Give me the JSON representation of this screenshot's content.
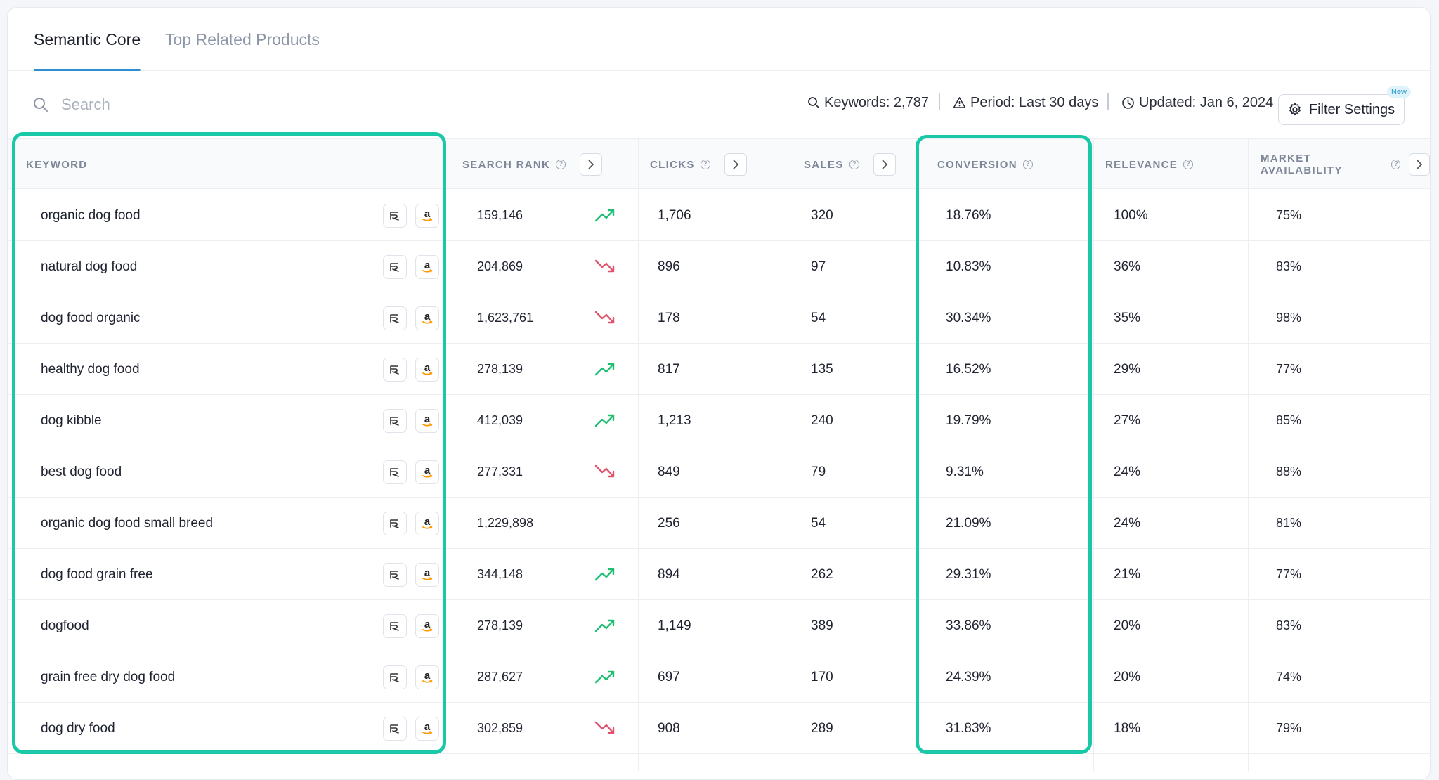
{
  "tabs": [
    {
      "label": "Semantic Core",
      "active": true
    },
    {
      "label": "Top Related Products",
      "active": false
    }
  ],
  "search": {
    "placeholder": "Search",
    "icon": "search-icon"
  },
  "meta": {
    "keywords": "Keywords: 2,787",
    "period": "Period: Last 30 days",
    "updated": "Updated: Jan 6, 2024"
  },
  "filter_button": {
    "label": "Filter Settings",
    "badge": "New"
  },
  "columns": {
    "keyword": "KEYWORD",
    "search_rank": "SEARCH RANK",
    "clicks": "CLICKS",
    "sales": "SALES",
    "conversion": "CONVERSION",
    "relevance": "RELEVANCE",
    "market_availability": "MARKET AVAILABILITY"
  },
  "colors": {
    "accent": "#2f8ecf",
    "highlight": "#19c8a6",
    "trend_up": "#1dbf73",
    "trend_down": "#e0536b"
  },
  "rows": [
    {
      "keyword": "organic dog food",
      "search_rank": "159,146",
      "trend": "up",
      "clicks": "1,706",
      "sales": "320",
      "conversion": "18.76%",
      "relevance": "100%",
      "market": "75%"
    },
    {
      "keyword": "natural dog food",
      "search_rank": "204,869",
      "trend": "down",
      "clicks": "896",
      "sales": "97",
      "conversion": "10.83%",
      "relevance": "36%",
      "market": "83%"
    },
    {
      "keyword": "dog food organic",
      "search_rank": "1,623,761",
      "trend": "down",
      "clicks": "178",
      "sales": "54",
      "conversion": "30.34%",
      "relevance": "35%",
      "market": "98%"
    },
    {
      "keyword": "healthy dog food",
      "search_rank": "278,139",
      "trend": "up",
      "clicks": "817",
      "sales": "135",
      "conversion": "16.52%",
      "relevance": "29%",
      "market": "77%"
    },
    {
      "keyword": "dog kibble",
      "search_rank": "412,039",
      "trend": "up",
      "clicks": "1,213",
      "sales": "240",
      "conversion": "19.79%",
      "relevance": "27%",
      "market": "85%"
    },
    {
      "keyword": "best dog food",
      "search_rank": "277,331",
      "trend": "down",
      "clicks": "849",
      "sales": "79",
      "conversion": "9.31%",
      "relevance": "24%",
      "market": "88%"
    },
    {
      "keyword": "organic dog food small breed",
      "search_rank": "1,229,898",
      "trend": "none",
      "clicks": "256",
      "sales": "54",
      "conversion": "21.09%",
      "relevance": "24%",
      "market": "81%"
    },
    {
      "keyword": "dog food grain free",
      "search_rank": "344,148",
      "trend": "up",
      "clicks": "894",
      "sales": "262",
      "conversion": "29.31%",
      "relevance": "21%",
      "market": "77%"
    },
    {
      "keyword": "dogfood",
      "search_rank": "278,139",
      "trend": "up",
      "clicks": "1,149",
      "sales": "389",
      "conversion": "33.86%",
      "relevance": "20%",
      "market": "83%"
    },
    {
      "keyword": "grain free dry dog food",
      "search_rank": "287,627",
      "trend": "up",
      "clicks": "697",
      "sales": "170",
      "conversion": "24.39%",
      "relevance": "20%",
      "market": "74%"
    },
    {
      "keyword": "dog dry food",
      "search_rank": "302,859",
      "trend": "down",
      "clicks": "908",
      "sales": "289",
      "conversion": "31.83%",
      "relevance": "18%",
      "market": "79%"
    }
  ]
}
